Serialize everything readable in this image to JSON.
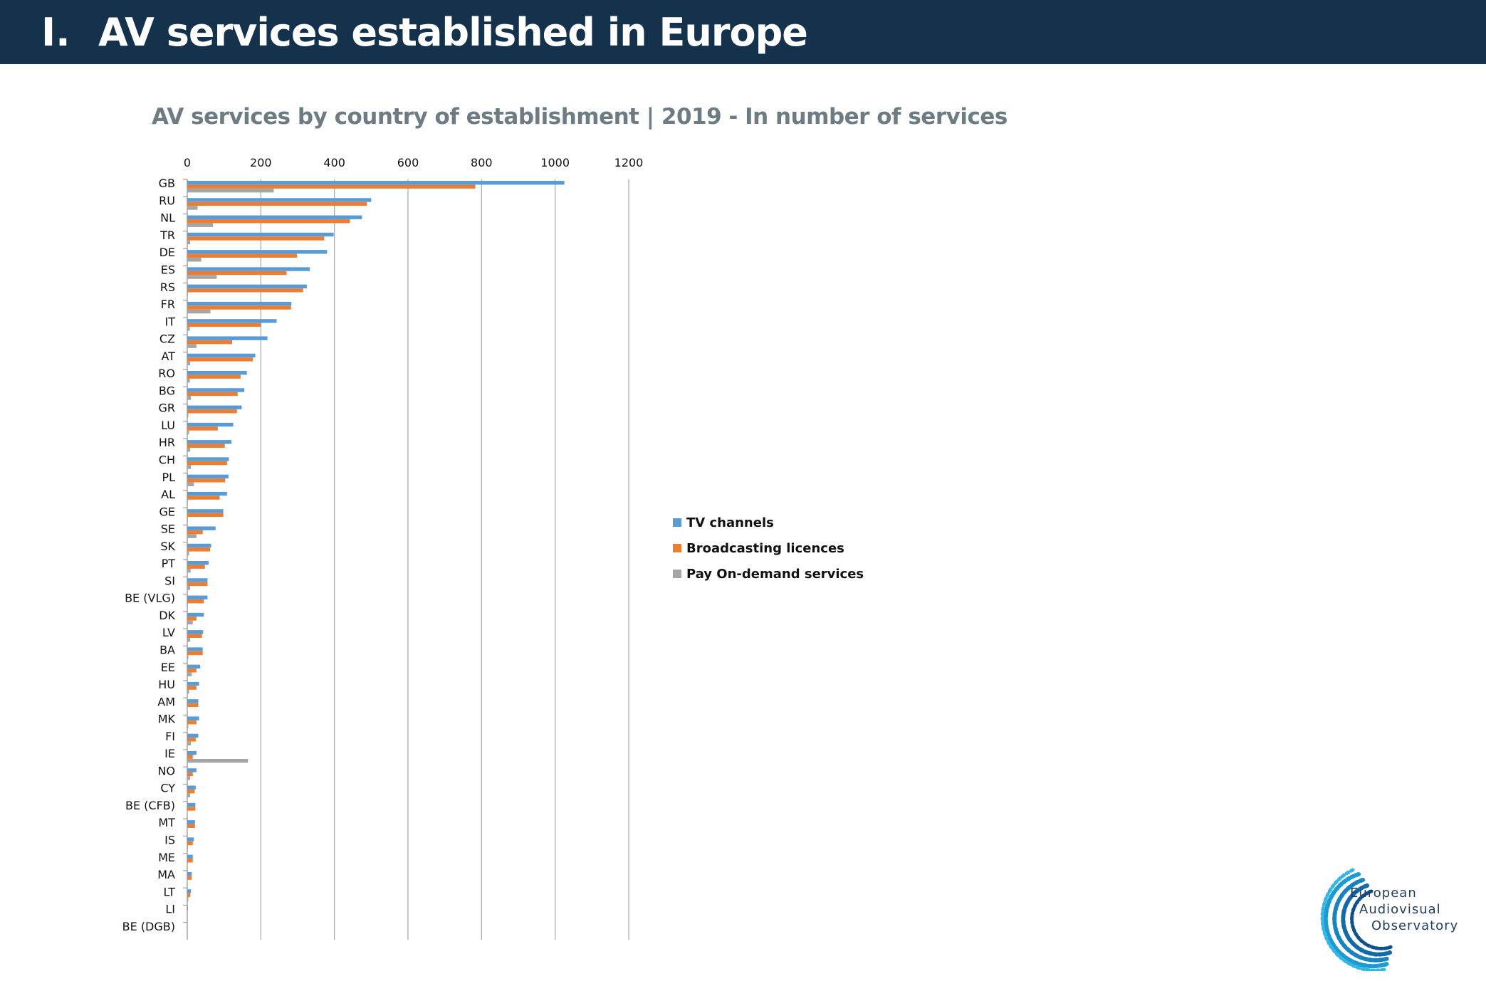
{
  "header": {
    "number": "I.",
    "title": "AV services established in Europe"
  },
  "colors": {
    "header_bg": "#15324c",
    "tv": "#5b9bd5",
    "broadcasting": "#ed7d31",
    "on_demand": "#a5a5a5"
  },
  "chart_data": {
    "type": "bar",
    "orientation": "horizontal",
    "title": "AV services by country of establishment | 2019 - In number of services",
    "xlim": [
      0,
      1200
    ],
    "xticks": [
      0,
      200,
      400,
      600,
      800,
      1000,
      1200
    ],
    "grid": true,
    "legend_position": "right",
    "categories": [
      "GB",
      "RU",
      "NL",
      "TR",
      "DE",
      "ES",
      "RS",
      "FR",
      "IT",
      "CZ",
      "AT",
      "RO",
      "BG",
      "GR",
      "LU",
      "HR",
      "CH",
      "PL",
      "AL",
      "GE",
      "SE",
      "SK",
      "PT",
      "SI",
      "BE (VLG)",
      "DK",
      "LV",
      "BA",
      "EE",
      "HU",
      "AM",
      "MK",
      "FI",
      "IE",
      "NO",
      "CY",
      "BE (CFB)",
      "MT",
      "IS",
      "ME",
      "MA",
      "LT",
      "LI",
      "BE (DGB)"
    ],
    "series": [
      {
        "name": "TV channels",
        "color": "#5b9bd5",
        "values": [
          1025,
          500,
          475,
          398,
          380,
          333,
          325,
          283,
          243,
          218,
          185,
          162,
          155,
          148,
          125,
          120,
          113,
          112,
          108,
          98,
          77,
          65,
          58,
          55,
          55,
          45,
          43,
          42,
          35,
          32,
          30,
          32,
          30,
          25,
          25,
          23,
          22,
          21,
          18,
          15,
          12,
          10,
          2,
          1
        ]
      },
      {
        "name": "Broadcasting licences",
        "color": "#ed7d31",
        "values": [
          783,
          488,
          442,
          372,
          298,
          270,
          315,
          282,
          200,
          122,
          178,
          145,
          137,
          135,
          83,
          102,
          108,
          103,
          88,
          98,
          42,
          62,
          48,
          55,
          45,
          25,
          40,
          42,
          25,
          25,
          30,
          25,
          23,
          15,
          15,
          20,
          22,
          21,
          15,
          15,
          12,
          8,
          1,
          1
        ]
      },
      {
        "name": "Pay On-demand services",
        "color": "#a5a5a5",
        "values": [
          235,
          28,
          70,
          8,
          38,
          80,
          2,
          63,
          7,
          25,
          8,
          7,
          10,
          3,
          5,
          8,
          10,
          18,
          2,
          2,
          25,
          5,
          9,
          8,
          2,
          15,
          8,
          3,
          12,
          5,
          1,
          3,
          10,
          165,
          8,
          8,
          1,
          1,
          2,
          1,
          1,
          3,
          0,
          0
        ]
      }
    ]
  },
  "logo": {
    "line1": "European",
    "line2": "Audiovisual",
    "line3": "Observatory"
  }
}
